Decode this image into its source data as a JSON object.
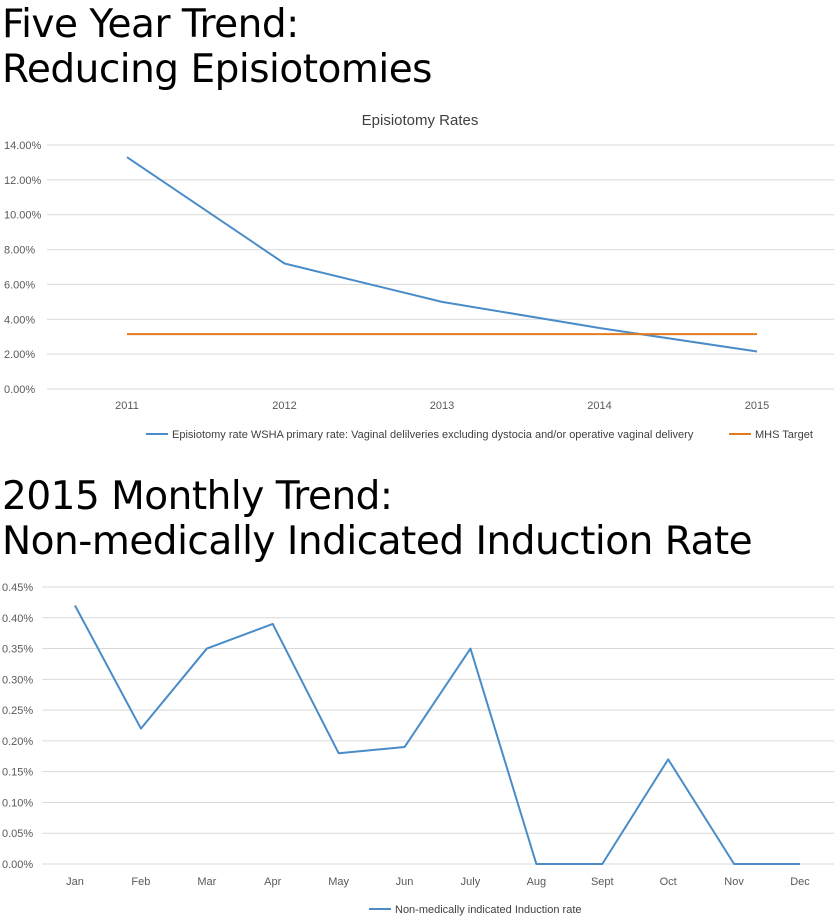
{
  "slide": {
    "title1_line1": "Five Year Trend:",
    "title1_line2": "Reducing Episiotomies",
    "title2_line1": "2015 Monthly Trend:",
    "title2_line2": "Non-medically Indicated Induction Rate"
  },
  "chart_data": [
    {
      "type": "line",
      "title": "Episiotomy Rates",
      "categories": [
        "2011",
        "2012",
        "2013",
        "2014",
        "2015"
      ],
      "yticks": [
        "0.00%",
        "2.00%",
        "4.00%",
        "6.00%",
        "8.00%",
        "10.00%",
        "12.00%",
        "14.00%"
      ],
      "ylim": [
        0,
        14
      ],
      "series": [
        {
          "name": "Episiotomy rate WSHA primary rate: Vaginal delilveries excluding dystocia and/or operative vaginal delivery",
          "color": "#4a8cc8",
          "values": [
            13.3,
            7.2,
            5.0,
            3.5,
            2.15
          ]
        },
        {
          "name": "MHS Target",
          "color": "#e07b20",
          "values": [
            3.15,
            3.15,
            3.15,
            3.15,
            3.15
          ]
        }
      ],
      "grid": true,
      "legend": "bottom"
    },
    {
      "type": "line",
      "categories": [
        "Jan",
        "Feb",
        "Mar",
        "Apr",
        "May",
        "Jun",
        "July",
        "Aug",
        "Sept",
        "Oct",
        "Nov",
        "Dec"
      ],
      "yticks": [
        "0.00%",
        "0.05%",
        "0.10%",
        "0.15%",
        "0.20%",
        "0.25%",
        "0.30%",
        "0.35%",
        "0.40%",
        "0.45%"
      ],
      "ylim": [
        0,
        0.45
      ],
      "series": [
        {
          "name": "Non-medically indicated Induction rate",
          "color": "#4a8cc8",
          "values": [
            0.42,
            0.22,
            0.35,
            0.39,
            0.18,
            0.19,
            0.35,
            0.0,
            0.0,
            0.17,
            0.0,
            0.0
          ]
        }
      ],
      "grid": true,
      "legend": "bottom"
    }
  ]
}
